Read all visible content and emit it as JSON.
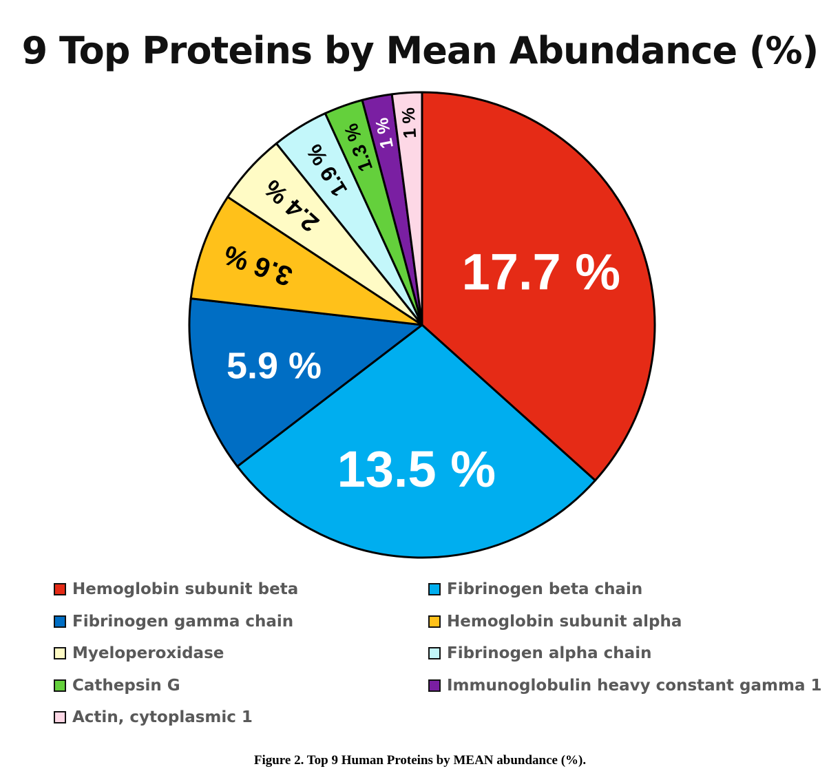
{
  "chart_data": {
    "type": "pie",
    "title": "9 Top Proteins by Mean Abundance (%)",
    "slices": [
      {
        "label": "Hemoglobin subunit beta",
        "value": 17.7,
        "display": "17.7 %",
        "color": "#E52B16",
        "label_color": "#ffffff"
      },
      {
        "label": "Fibrinogen beta chain",
        "value": 13.5,
        "display": "13.5 %",
        "color": "#00AEEF",
        "label_color": "#ffffff"
      },
      {
        "label": "Fibrinogen gamma chain",
        "value": 5.9,
        "display": "5.9 %",
        "color": "#006EC4",
        "label_color": "#ffffff"
      },
      {
        "label": "Hemoglobin subunit alpha",
        "value": 3.6,
        "display": "3.6 %",
        "color": "#FFC11A",
        "label_color": "#000000"
      },
      {
        "label": "Myeloperoxidase",
        "value": 2.4,
        "display": "2.4 %",
        "color": "#FFFBC5",
        "label_color": "#000000"
      },
      {
        "label": "Fibrinogen alpha chain",
        "value": 1.9,
        "display": "1.9 %",
        "color": "#C3F7FA",
        "label_color": "#000000"
      },
      {
        "label": "Cathepsin G",
        "value": 1.3,
        "display": "1.3 %",
        "color": "#64D03C",
        "label_color": "#000000"
      },
      {
        "label": "Immunoglobulin heavy constant gamma 1",
        "value": 1.0,
        "display": "1 %",
        "color": "#7A1FA2",
        "label_color": "#ffffff"
      },
      {
        "label": "Actin, cytoplasmic 1",
        "value": 1.0,
        "display": "1 %",
        "color": "#FDD8E6",
        "label_color": "#000000"
      }
    ],
    "start_angle": "12 o'clock",
    "direction": "clockwise",
    "legend_position": "bottom"
  },
  "caption": "Figure 2. Top 9 Human Proteins by MEAN abundance (%)."
}
